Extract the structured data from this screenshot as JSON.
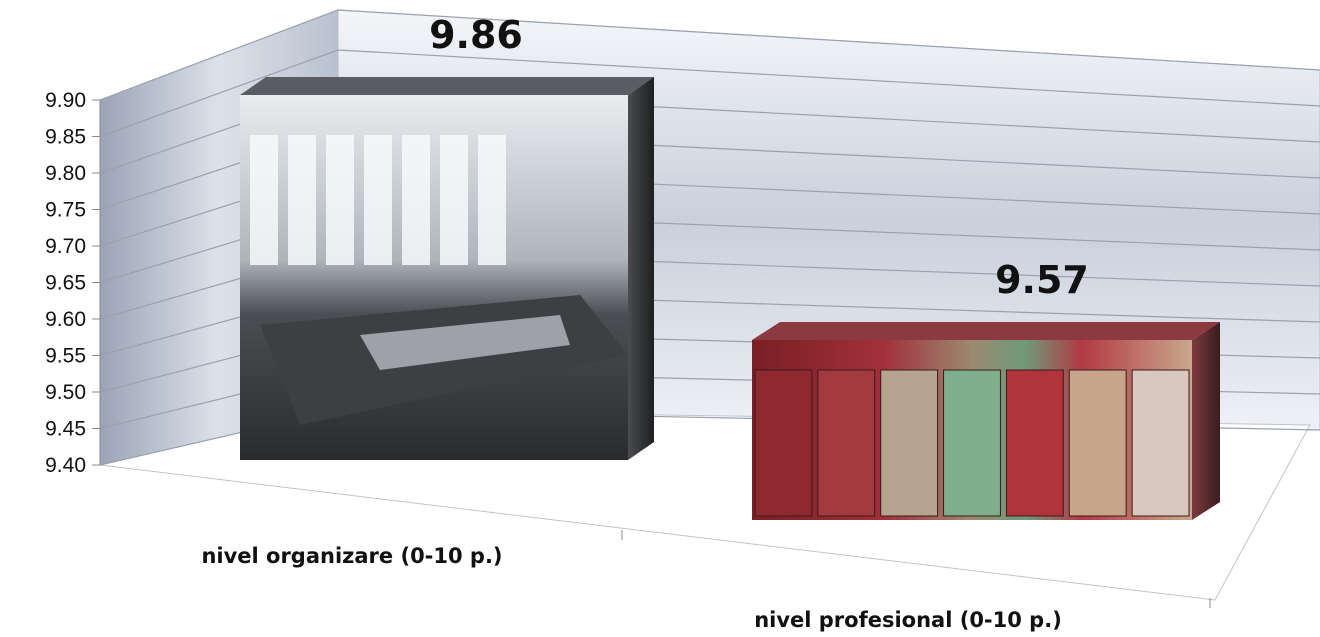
{
  "chart_data": {
    "type": "bar",
    "categories": [
      "nivel organizare (0-10 p.)",
      "nivel profesional (0-10 p.)"
    ],
    "values": [
      9.86,
      9.57
    ],
    "data_labels": [
      "9.86",
      "9.57"
    ],
    "y_ticks": [
      "9.40",
      "9.45",
      "9.50",
      "9.55",
      "9.60",
      "9.65",
      "9.70",
      "9.75",
      "9.80",
      "9.85",
      "9.90"
    ],
    "ylim": [
      9.4,
      9.9
    ],
    "grid": true,
    "legend": "none",
    "style": "3d-column",
    "bar_fills": [
      "meeting-room-photo",
      "bookshelf-photo"
    ]
  }
}
